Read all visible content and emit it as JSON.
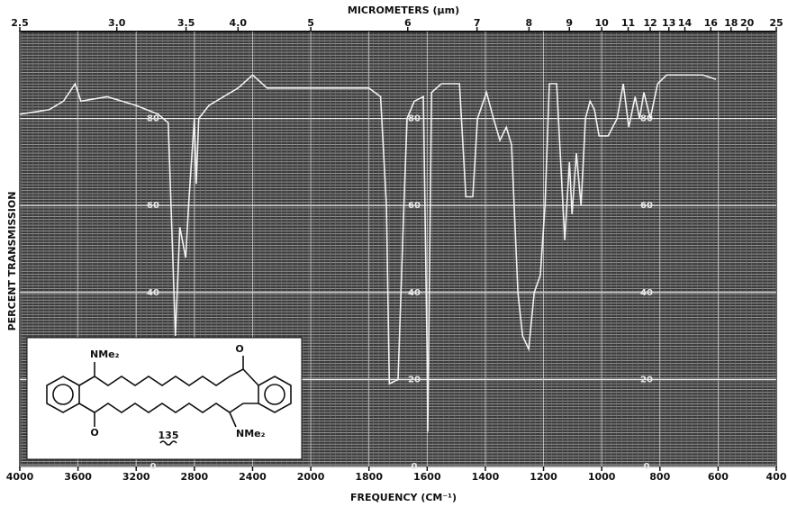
{
  "chart_data": {
    "type": "line",
    "x_label": "FREQUENCY (CM⁻¹)",
    "x2_label": "MICROMETERS (µm)",
    "y_label": "PERCENT TRANSMISSION",
    "xlim": [
      4000,
      400
    ],
    "xticks": [
      4000,
      3600,
      3200,
      2800,
      2400,
      2000,
      1800,
      1600,
      1400,
      1200,
      1000,
      800,
      600,
      400
    ],
    "x2ticks": [
      2.5,
      {
        "value": 3,
        "label": "3.0"
      },
      3.5,
      {
        "value": 4,
        "label": "4.0"
      },
      5,
      6,
      7,
      8,
      9,
      10,
      11,
      12,
      13,
      14,
      16,
      18,
      20,
      25
    ],
    "ylim": [
      0,
      100
    ],
    "yticks": [
      0,
      20,
      40,
      60,
      80
    ],
    "grid": true,
    "color": "#f2f2f2",
    "x": [
      4000,
      3800,
      3700,
      3620,
      3580,
      3400,
      3200,
      3050,
      2980,
      2930,
      2900,
      2860,
      2840,
      2800,
      2787,
      2770,
      2700,
      2500,
      2400,
      2300,
      2000,
      1800,
      1760,
      1740,
      1730,
      1700,
      1680,
      1669,
      1644,
      1613,
      1600,
      1598,
      1585,
      1551,
      1489,
      1467,
      1443,
      1427,
      1396,
      1372,
      1350,
      1328,
      1310,
      1288,
      1272,
      1251,
      1232,
      1211,
      1195,
      1180,
      1155,
      1127,
      1111,
      1102,
      1087,
      1071,
      1056,
      1040,
      1025,
      1009,
      978,
      947,
      926,
      907,
      885,
      870,
      855,
      833,
      808,
      777,
      653,
      607
    ],
    "values": [
      81,
      82,
      84,
      88,
      84,
      85,
      83,
      81,
      79,
      30,
      55,
      48,
      60,
      80,
      65,
      80,
      83,
      87,
      90,
      87,
      87,
      87,
      85,
      60,
      19,
      20,
      60,
      80,
      84,
      85,
      25,
      8,
      86,
      88,
      88,
      62,
      62,
      80,
      86,
      80,
      75,
      78,
      74,
      40,
      30,
      27,
      40,
      44,
      60,
      88,
      88,
      52,
      70,
      58,
      72,
      60,
      80,
      84,
      82,
      76,
      76,
      80,
      88,
      78,
      85,
      80,
      86,
      80,
      88,
      90,
      90,
      89
    ],
    "annotations": [
      "NMe₂",
      "O",
      "O",
      "NMe₂",
      "135"
    ]
  }
}
